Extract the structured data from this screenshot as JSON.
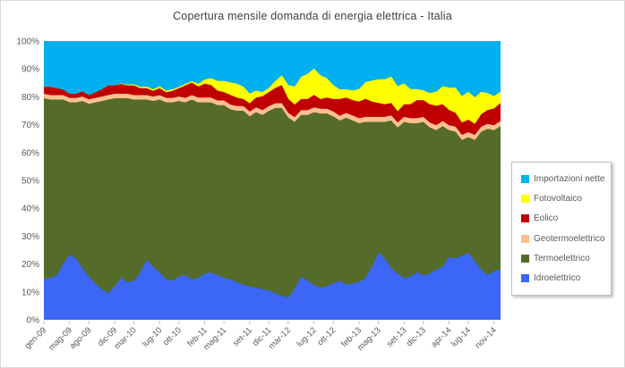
{
  "chart_data": {
    "type": "area",
    "stacking": "percent",
    "title": "Copertura mensile domanda di energia elettrica - Italia",
    "xlabel": "",
    "ylabel": "",
    "ylim": [
      0,
      100
    ],
    "grid": false,
    "legend_position": "right",
    "y_ticks": [
      "0%",
      "10%",
      "20%",
      "30%",
      "40%",
      "50%",
      "60%",
      "70%",
      "80%",
      "90%",
      "100%"
    ],
    "x": [
      "gen-09",
      "feb-09",
      "mar-09",
      "apr-09",
      "mag-09",
      "giu-09",
      "lug-09",
      "ago-09",
      "set-09",
      "ott-09",
      "nov-09",
      "dic-09",
      "gen-10",
      "feb-10",
      "mar-10",
      "apr-10",
      "mag-10",
      "giu-10",
      "lug-10",
      "ago-10",
      "set-10",
      "ott-10",
      "nov-10",
      "dic-10",
      "gen-11",
      "feb-11",
      "mar-11",
      "apr-11",
      "mag-11",
      "giu-11",
      "lug-11",
      "ago-11",
      "set-11",
      "ott-11",
      "nov-11",
      "dic-11",
      "gen-12",
      "feb-12",
      "mar-12",
      "apr-12",
      "mag-12",
      "giu-12",
      "lug-12",
      "ago-12",
      "set-12",
      "ott-12",
      "nov-12",
      "dic-12",
      "gen-13",
      "feb-13",
      "mar-13",
      "apr-13",
      "mag-13",
      "giu-13",
      "lug-13",
      "ago-13",
      "set-13",
      "ott-13",
      "nov-13",
      "dic-13",
      "gen-14",
      "feb-14",
      "mar-14",
      "apr-14",
      "mag-14",
      "giu-14",
      "lug-14",
      "ago-14",
      "set-14",
      "ott-14",
      "nov-14",
      "dic-14"
    ],
    "x_ticks": [
      "gen-09",
      "mag-09",
      "ago-09",
      "dic-09",
      "mar-10",
      "lug-10",
      "ott-10",
      "feb-11",
      "mag-11",
      "set-11",
      "dic-11",
      "mar-12",
      "lug-12",
      "ott-12",
      "feb-13",
      "mag-13",
      "set-13",
      "dic-13",
      "apr-14",
      "lug-14",
      "nov-14"
    ],
    "series": [
      {
        "name": "Idroelettrico",
        "color": "#3B66F6",
        "values": [
          14.5,
          15,
          16,
          20,
          23.5,
          22,
          18.5,
          15.5,
          13,
          11,
          9.5,
          12,
          15,
          13.5,
          14,
          17,
          21.5,
          19,
          17,
          14.5,
          14,
          15.5,
          16,
          14.5,
          15,
          16.5,
          17,
          16,
          15,
          14.5,
          13.5,
          12.5,
          12,
          11.5,
          11,
          10.5,
          9.5,
          8.5,
          8,
          11,
          15.5,
          14,
          12.5,
          11.5,
          12,
          13,
          14,
          12.5,
          13,
          13.5,
          15,
          19,
          24,
          22,
          18.5,
          16.5,
          15,
          15.5,
          17,
          16,
          16.5,
          18,
          19,
          22.5,
          22,
          23,
          24,
          21,
          18,
          16,
          17.5,
          18
        ]
      },
      {
        "name": "Termoelettrico",
        "color": "#556B2A",
        "values": [
          65,
          64,
          63,
          59,
          54.5,
          56,
          60,
          62,
          65,
          67.5,
          69.5,
          67.5,
          64.5,
          66,
          65,
          62,
          57.5,
          59.5,
          62,
          63.5,
          64,
          63,
          62,
          64.5,
          63,
          61.5,
          61,
          61,
          62,
          61,
          61.5,
          62.5,
          61,
          63,
          62.5,
          64.5,
          66.5,
          67.5,
          64.5,
          60,
          58,
          59.5,
          62,
          62.5,
          62,
          60,
          57.5,
          60,
          58.5,
          57,
          56,
          52,
          47,
          49,
          53,
          52.5,
          56,
          55,
          53.5,
          55,
          52.5,
          50,
          50.5,
          45.5,
          45.5,
          41.5,
          41.5,
          43.5,
          49.5,
          52.5,
          50.5,
          51.5
        ]
      },
      {
        "name": "Geotermoelettrico",
        "color": "#FAC090",
        "values": [
          1.6,
          1.6,
          1.6,
          1.6,
          1.6,
          1.6,
          1.6,
          1.6,
          1.6,
          1.6,
          1.6,
          1.6,
          1.6,
          1.6,
          1.6,
          1.6,
          1.6,
          1.6,
          1.6,
          1.6,
          1.6,
          1.6,
          1.6,
          1.6,
          1.7,
          1.7,
          1.7,
          1.7,
          1.7,
          1.7,
          1.7,
          1.7,
          1.7,
          1.7,
          1.7,
          1.7,
          1.7,
          1.7,
          1.7,
          1.7,
          1.7,
          1.7,
          1.7,
          1.7,
          1.7,
          1.7,
          1.7,
          1.7,
          1.8,
          1.8,
          1.8,
          1.8,
          1.8,
          1.8,
          1.8,
          1.8,
          1.8,
          1.8,
          1.8,
          1.8,
          1.8,
          1.8,
          1.8,
          1.8,
          1.8,
          1.8,
          1.8,
          1.8,
          1.8,
          1.8,
          1.8,
          1.8
        ]
      },
      {
        "name": "Eolico",
        "color": "#C00000",
        "values": [
          2.5,
          3,
          2.5,
          2,
          1.5,
          1.5,
          1.8,
          1.5,
          2,
          2.5,
          3.5,
          3,
          3.5,
          3,
          3.5,
          2.5,
          2.5,
          2,
          2.5,
          2,
          2.5,
          3,
          4.5,
          4.5,
          4,
          5,
          4.5,
          3.5,
          3,
          3.5,
          3,
          2.5,
          3,
          3.5,
          5,
          5,
          5.5,
          6.5,
          5,
          4.5,
          4,
          4,
          4.5,
          3.5,
          4,
          4.5,
          6,
          5.5,
          5.5,
          6,
          6.5,
          5.5,
          5,
          4.5,
          4.5,
          4,
          4.5,
          5,
          6.5,
          6,
          6.5,
          7,
          6,
          5.5,
          5,
          4.5,
          4.5,
          4,
          4.5,
          5,
          6,
          6.5
        ]
      },
      {
        "name": "Fotovoltaico",
        "color": "#FFFF00",
        "values": [
          0,
          0,
          0,
          0,
          0,
          0,
          0,
          0,
          0,
          0,
          0,
          0,
          0.2,
          0.3,
          0.4,
          0.5,
          0.6,
          0.6,
          0.7,
          0.6,
          0.6,
          0.5,
          0.5,
          0.5,
          1,
          1.5,
          2.5,
          3.5,
          4,
          4.5,
          5,
          4.5,
          3.5,
          2.5,
          1.5,
          1.5,
          2.5,
          3.5,
          5,
          6.5,
          8,
          9,
          9.5,
          8.5,
          7,
          5,
          3.5,
          3,
          3.5,
          4.5,
          6,
          7.5,
          8.5,
          9,
          9.5,
          9,
          7.5,
          5.5,
          4,
          3.5,
          4,
          5,
          6.5,
          8,
          9,
          9.5,
          10,
          9.5,
          8,
          6,
          4.5,
          4
        ]
      },
      {
        "name": "Importazioni nette",
        "color": "#00B0F0",
        "values": [
          16.4,
          16.4,
          16.9,
          17.4,
          18.9,
          18.9,
          18.1,
          19.4,
          18.4,
          17.4,
          15.9,
          15.9,
          15.2,
          15.6,
          15.5,
          16.4,
          16.3,
          17.3,
          16.2,
          17.8,
          17.3,
          16.4,
          15.4,
          14.4,
          15.3,
          13.8,
          13.3,
          14.3,
          14.3,
          14.8,
          15.3,
          16.3,
          18.8,
          17.8,
          18.3,
          16.8,
          14.3,
          12.3,
          15.8,
          16.3,
          12.8,
          11.8,
          9.8,
          12.3,
          13.3,
          15.8,
          17.3,
          17.3,
          17.7,
          17.2,
          14.7,
          14.2,
          13.7,
          13.7,
          12.7,
          16.2,
          15.2,
          17.2,
          17.2,
          17.7,
          18.7,
          18.2,
          16.2,
          16.7,
          16.7,
          19.7,
          18.2,
          20.2,
          18.2,
          18.7,
          19.7,
          18.2
        ]
      }
    ]
  }
}
